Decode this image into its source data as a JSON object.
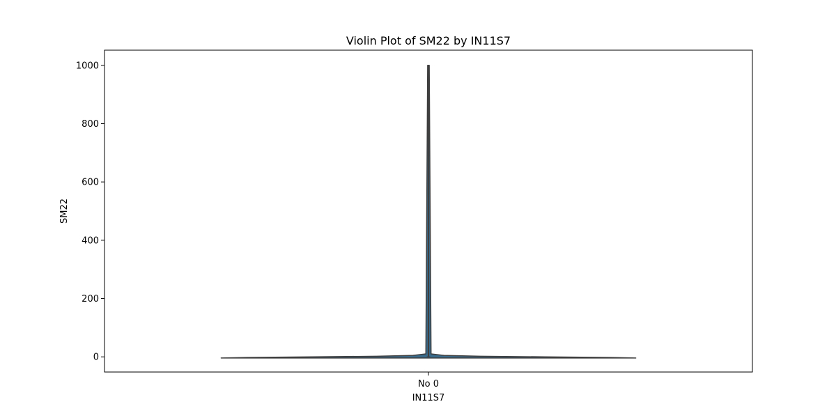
{
  "chart_data": {
    "type": "violin",
    "title": "Violin Plot of SM22 by IN11S7",
    "xlabel": "IN11S7",
    "ylabel": "SM22",
    "categories": [
      "No 0"
    ],
    "ylim": [
      -52,
      1052
    ],
    "yticks": [
      0,
      200,
      400,
      600,
      800,
      1000
    ],
    "grid": false,
    "legend": "none",
    "series": [
      {
        "category": "No 0",
        "fill_color": "#3a6a8a",
        "line_color": "#3f3f3f",
        "density_shape": [
          {
            "y": -4,
            "halfwidth": 0.8
          },
          {
            "y": -2,
            "halfwidth": 0.7
          },
          {
            "y": 0,
            "halfwidth": 0.45
          },
          {
            "y": 2,
            "halfwidth": 0.2
          },
          {
            "y": 5,
            "halfwidth": 0.06
          },
          {
            "y": 10,
            "halfwidth": 0.01
          },
          {
            "y": 1000,
            "halfwidth": 0.003
          }
        ],
        "whisker": [
          0,
          1000
        ],
        "box": [
          0,
          2
        ]
      }
    ]
  }
}
